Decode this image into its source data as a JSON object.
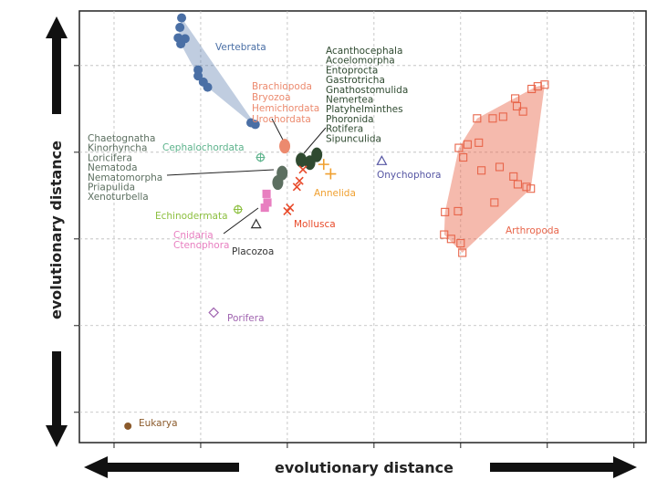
{
  "chart_data": {
    "type": "scatter",
    "title": "",
    "xlabel": "evolutionary distance",
    "ylabel": "evolutionary distance",
    "xlim": [
      -0.4,
      6.14
    ],
    "ylim": [
      -0.35,
      4.63
    ],
    "grid": true,
    "tick_labels": false,
    "groups": [
      {
        "name": "Vertebrata",
        "lines": [
          "Vertebrata"
        ],
        "color": "#4a6fa5",
        "marker": "circle",
        "hull": true,
        "points": [
          [
            0.78,
            4.55
          ],
          [
            0.76,
            4.44
          ],
          [
            0.74,
            4.32
          ],
          [
            0.82,
            4.31
          ],
          [
            0.77,
            4.25
          ],
          [
            0.97,
            3.88
          ],
          [
            1.03,
            3.81
          ],
          [
            1.08,
            3.75
          ],
          [
            0.97,
            3.95
          ],
          [
            1.58,
            3.34
          ],
          [
            1.63,
            3.32
          ]
        ]
      },
      {
        "name": "Arthropoda",
        "lines": [
          "Arthropoda"
        ],
        "color": "#e8654a",
        "marker": "square",
        "hull": true,
        "points": [
          [
            4.82,
            3.73
          ],
          [
            4.89,
            3.76
          ],
          [
            4.97,
            3.78
          ],
          [
            4.63,
            3.62
          ],
          [
            4.65,
            3.53
          ],
          [
            4.72,
            3.47
          ],
          [
            4.19,
            3.39
          ],
          [
            4.37,
            3.39
          ],
          [
            4.49,
            3.41
          ],
          [
            3.98,
            3.05
          ],
          [
            4.08,
            3.09
          ],
          [
            4.21,
            3.11
          ],
          [
            4.03,
            2.94
          ],
          [
            4.24,
            2.79
          ],
          [
            4.45,
            2.83
          ],
          [
            4.61,
            2.72
          ],
          [
            4.66,
            2.63
          ],
          [
            4.76,
            2.6
          ],
          [
            4.81,
            2.58
          ],
          [
            4.39,
            2.42
          ],
          [
            3.82,
            2.31
          ],
          [
            3.97,
            2.32
          ],
          [
            3.81,
            2.05
          ],
          [
            3.89,
            2.0
          ],
          [
            4.0,
            1.95
          ],
          [
            4.02,
            1.84
          ]
        ]
      },
      {
        "name": "Brachiopoda/Bryozoa/Hemichordata/Urochordata",
        "lines": [
          "Brachiopoda",
          "Bryozoa",
          "Hemichordata",
          "Urochordata"
        ],
        "color": "#ec8a6e",
        "marker": "blob",
        "points": [
          [
            1.97,
            3.07
          ]
        ]
      },
      {
        "name": "Acanthocephala ... Sipunculida",
        "lines": [
          "Acanthocephala",
          "Acoelomorpha",
          "Entoprocta",
          "Gastrotricha",
          "Gnathostomulida",
          "Nemertea",
          "Platyhelminthes",
          "Phoronida",
          "Rotifera",
          "Sipunculida"
        ],
        "color": "#2f4a30",
        "marker": "blob",
        "points": [
          [
            2.16,
            2.91
          ],
          [
            2.26,
            2.88
          ],
          [
            2.34,
            2.97
          ]
        ]
      },
      {
        "name": "Chaetognatha ... Xenoturbella",
        "lines": [
          "Chaetognatha",
          "Kinorhyncha",
          "Loricifera",
          "Nematoda",
          "Nematomorpha",
          "Priapulida",
          "Xenoturbella"
        ],
        "color": "#5c6f60",
        "marker": "blob",
        "points": [
          [
            1.94,
            2.76
          ],
          [
            1.89,
            2.65
          ]
        ]
      },
      {
        "name": "Cephalochordata",
        "lines": [
          "Cephalochordata"
        ],
        "color": "#5db38c",
        "marker": "crosshair",
        "points": [
          [
            1.69,
            2.94
          ]
        ]
      },
      {
        "name": "Echinodermata",
        "lines": [
          "Echinodermata"
        ],
        "color": "#8cbf3f",
        "marker": "crosshair",
        "points": [
          [
            1.43,
            2.34
          ]
        ]
      },
      {
        "name": "Cnidaria/Ctenophora",
        "lines": [
          "Cnidaria",
          "Ctenophora"
        ],
        "color": "#e87fc0",
        "marker": "square",
        "points": [
          [
            1.76,
            2.52
          ],
          [
            1.77,
            2.42
          ],
          [
            1.74,
            2.36
          ]
        ]
      },
      {
        "name": "Placozoa",
        "lines": [
          "Placozoa"
        ],
        "color": "#333333",
        "marker": "triangle",
        "points": [
          [
            1.64,
            2.17
          ]
        ]
      },
      {
        "name": "Mollusca",
        "lines": [
          "Mollusca"
        ],
        "color": "#e84a2a",
        "marker": "x",
        "points": [
          [
            2.18,
            2.8
          ],
          [
            2.14,
            2.67
          ],
          [
            2.11,
            2.6
          ],
          [
            2.03,
            2.36
          ],
          [
            2.0,
            2.32
          ]
        ]
      },
      {
        "name": "Annelida",
        "lines": [
          "Annelida"
        ],
        "color": "#f0a030",
        "marker": "plus",
        "points": [
          [
            2.42,
            2.86
          ],
          [
            2.5,
            2.75
          ]
        ]
      },
      {
        "name": "Onychophora",
        "lines": [
          "Onychophora"
        ],
        "color": "#5656a3",
        "marker": "triangle",
        "points": [
          [
            3.09,
            2.9
          ]
        ]
      },
      {
        "name": "Porifera",
        "lines": [
          "Porifera"
        ],
        "color": "#a064b0",
        "marker": "diamond",
        "points": [
          [
            1.15,
            1.15
          ]
        ]
      },
      {
        "name": "Eukarya",
        "lines": [
          "Eukarya"
        ],
        "color": "#8b5a2b",
        "marker": "circle",
        "points": [
          [
            0.16,
            -0.16
          ]
        ]
      }
    ]
  }
}
